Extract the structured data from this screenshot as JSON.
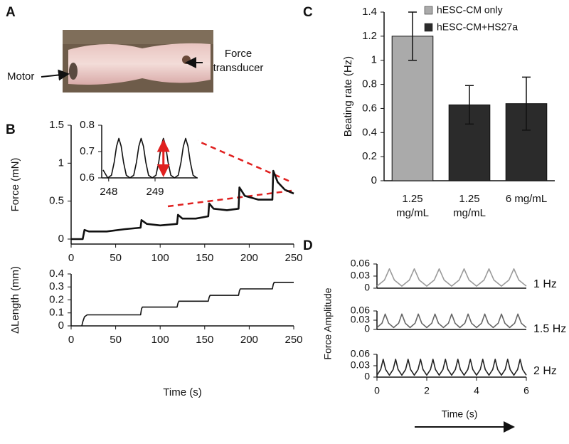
{
  "panel_labels": [
    "A",
    "B",
    "C",
    "D"
  ],
  "panel_a": {
    "motor_label": "Motor",
    "force_label": "Force\ntransducer"
  },
  "chart_data": [
    {
      "type": "line",
      "ylabel": "Force (mN)",
      "color": "#111111",
      "x": [
        0,
        13,
        15,
        20,
        40,
        60,
        78,
        79,
        85,
        100,
        119,
        120,
        125,
        140,
        154,
        155,
        160,
        175,
        188,
        189,
        195,
        210,
        226,
        227,
        232,
        240,
        250
      ],
      "values": [
        0,
        0,
        0.12,
        0.1,
        0.1,
        0.13,
        0.15,
        0.25,
        0.2,
        0.18,
        0.2,
        0.32,
        0.27,
        0.27,
        0.3,
        0.47,
        0.4,
        0.38,
        0.4,
        0.68,
        0.57,
        0.52,
        0.52,
        0.9,
        0.75,
        0.65,
        0.6
      ],
      "xlim": [
        0,
        250
      ],
      "xticks": [
        0,
        50,
        100,
        150,
        200,
        250
      ],
      "ylim": [
        0,
        1.5
      ],
      "yticks": [
        0,
        0.5,
        1,
        1.5
      ]
    },
    {
      "type": "line",
      "color": "#111111",
      "x": [
        247.88,
        247.98,
        248.06,
        248.12,
        248.17,
        248.22,
        248.27,
        248.32,
        248.38,
        248.46,
        248.54,
        248.6,
        248.65,
        248.7,
        248.75,
        248.8,
        248.86,
        248.94,
        249.02,
        249.08,
        249.13,
        249.18,
        249.23,
        249.28,
        249.34,
        249.42,
        249.5,
        249.56,
        249.61,
        249.66,
        249.71,
        249.76,
        249.82,
        249.9
      ],
      "values": [
        0.63,
        0.6,
        0.61,
        0.66,
        0.72,
        0.75,
        0.72,
        0.66,
        0.61,
        0.6,
        0.61,
        0.66,
        0.72,
        0.75,
        0.72,
        0.66,
        0.61,
        0.6,
        0.61,
        0.66,
        0.72,
        0.75,
        0.72,
        0.66,
        0.61,
        0.6,
        0.61,
        0.66,
        0.72,
        0.75,
        0.72,
        0.66,
        0.61,
        0.6
      ],
      "xlim": [
        247.85,
        249.92
      ],
      "xticks": [
        248,
        249
      ],
      "ylim": [
        0.6,
        0.8
      ],
      "yticks": [
        0.6,
        0.7,
        0.8
      ]
    },
    {
      "type": "line",
      "ylabel": "ΔLength (mm)",
      "xlabel": "Time (s)",
      "color": "#111111",
      "x": [
        12,
        13,
        15,
        18,
        20,
        78,
        79,
        80,
        119,
        120,
        121,
        154,
        155,
        156,
        188,
        189,
        190,
        226,
        227,
        228,
        250
      ],
      "values": [
        0,
        0.03,
        0.07,
        0.085,
        0.085,
        0.085,
        0.13,
        0.145,
        0.145,
        0.175,
        0.19,
        0.19,
        0.22,
        0.235,
        0.235,
        0.27,
        0.285,
        0.285,
        0.32,
        0.335,
        0.335
      ],
      "xlim": [
        0,
        250
      ],
      "xticks": [
        0,
        50,
        100,
        150,
        200,
        250
      ],
      "ylim": [
        0,
        0.4
      ],
      "yticks": [
        0,
        0.1,
        0.2,
        0.3,
        0.4
      ]
    },
    {
      "type": "bar",
      "ylabel": "Beating rate (Hz)",
      "categories": [
        "1.25\nmg/mL",
        "1.25\nmg/mL",
        "6 mg/mL"
      ],
      "series": [
        {
          "name": "hESC-CM only",
          "color": "#aaaaaa",
          "values": [
            1.2,
            null,
            null
          ],
          "errors": [
            0.2,
            null,
            null
          ]
        },
        {
          "name": "hESC-CM+HS27a",
          "color": "#2b2b2b",
          "values": [
            null,
            0.63,
            0.64
          ],
          "errors": [
            null,
            0.16,
            0.22
          ]
        }
      ],
      "ylim": [
        0,
        1.4
      ],
      "yticks": [
        0,
        0.2,
        0.4,
        0.6,
        0.8,
        1,
        1.2,
        1.4
      ],
      "legend": "top"
    },
    {
      "type": "line",
      "annotation": "1 Hz",
      "color": "#9a9a9a",
      "x": [
        0,
        0.3,
        0.5,
        0.7,
        1,
        1.3,
        1.5,
        1.7,
        2,
        2.3,
        2.5,
        2.7,
        3,
        3.3,
        3.5,
        3.7,
        4,
        4.3,
        4.5,
        4.7,
        5,
        5.3,
        5.5,
        5.7,
        6
      ],
      "values": [
        0.005,
        0.02,
        0.048,
        0.02,
        0.005,
        0.02,
        0.048,
        0.02,
        0.005,
        0.02,
        0.048,
        0.02,
        0.005,
        0.02,
        0.048,
        0.02,
        0.005,
        0.02,
        0.048,
        0.02,
        0.005,
        0.02,
        0.048,
        0.02,
        0.005
      ],
      "xlim": [
        0,
        6
      ],
      "ylim": [
        0,
        0.06
      ],
      "yticks": [
        0,
        0.03,
        0.06
      ]
    },
    {
      "type": "line",
      "annotation": "1.5 Hz",
      "ylabel": "Force Amplitude",
      "color": "#666666",
      "x": [
        0,
        0.2,
        0.33,
        0.47,
        0.67,
        0.87,
        1,
        1.14,
        1.33,
        1.53,
        1.66,
        1.8,
        2,
        2.2,
        2.33,
        2.47,
        2.67,
        2.87,
        3,
        3.14,
        3.33,
        3.53,
        3.66,
        3.8,
        4,
        4.2,
        4.33,
        4.47,
        4.67,
        4.87,
        5,
        5.14,
        5.33,
        5.53,
        5.66,
        5.8,
        6
      ],
      "values": [
        0.006,
        0.02,
        0.05,
        0.02,
        0.006,
        0.02,
        0.05,
        0.02,
        0.006,
        0.02,
        0.05,
        0.02,
        0.006,
        0.02,
        0.05,
        0.02,
        0.006,
        0.02,
        0.05,
        0.02,
        0.006,
        0.02,
        0.05,
        0.02,
        0.006,
        0.02,
        0.05,
        0.02,
        0.006,
        0.02,
        0.05,
        0.02,
        0.006,
        0.02,
        0.05,
        0.02,
        0.006
      ],
      "xlim": [
        0,
        6
      ],
      "ylim": [
        0,
        0.06
      ],
      "yticks": [
        0,
        0.03,
        0.06
      ]
    },
    {
      "type": "line",
      "annotation": "2 Hz",
      "xlabel": "Time (s)",
      "color": "#222222",
      "x": [
        0,
        0.15,
        0.25,
        0.35,
        0.5,
        0.65,
        0.75,
        0.85,
        1,
        1.15,
        1.25,
        1.35,
        1.5,
        1.65,
        1.75,
        1.85,
        2,
        2.15,
        2.25,
        2.35,
        2.5,
        2.65,
        2.75,
        2.85,
        3,
        3.15,
        3.25,
        3.35,
        3.5,
        3.65,
        3.75,
        3.85,
        4,
        4.15,
        4.25,
        4.35,
        4.5,
        4.65,
        4.75,
        4.85,
        5,
        5.15,
        5.25,
        5.35,
        5.5,
        5.65,
        5.75,
        5.85,
        6
      ],
      "values": [
        0.005,
        0.02,
        0.047,
        0.02,
        0.005,
        0.02,
        0.047,
        0.02,
        0.005,
        0.02,
        0.047,
        0.02,
        0.005,
        0.02,
        0.047,
        0.02,
        0.005,
        0.02,
        0.047,
        0.02,
        0.005,
        0.02,
        0.047,
        0.02,
        0.005,
        0.02,
        0.047,
        0.02,
        0.005,
        0.02,
        0.047,
        0.02,
        0.005,
        0.02,
        0.047,
        0.02,
        0.005,
        0.02,
        0.047,
        0.02,
        0.005,
        0.02,
        0.047,
        0.02,
        0.005,
        0.02,
        0.047,
        0.02,
        0.005
      ],
      "xlim": [
        0,
        6
      ],
      "xticks": [
        0,
        2,
        4,
        6
      ],
      "ylim": [
        0,
        0.06
      ],
      "yticks": [
        0,
        0.03,
        0.06
      ]
    }
  ]
}
